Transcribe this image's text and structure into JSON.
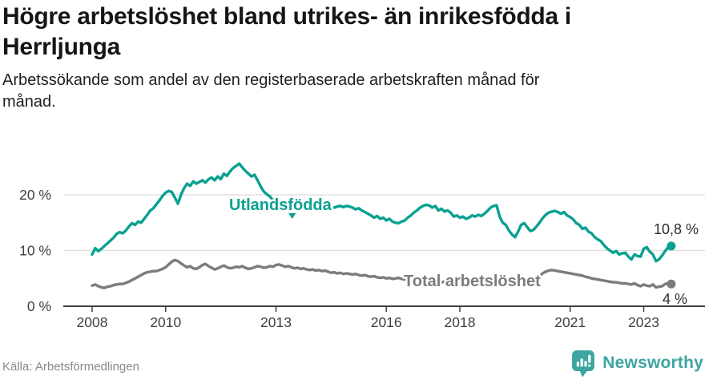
{
  "header": {
    "title_line1": "Högre arbetslöshet bland utrikes- än inrikesfödda i",
    "title_line2": "Herrljunga",
    "subtitle_line1": "Arbetssökande som andel av den registerbaserade arbetskraften månad för",
    "subtitle_line2": "månad."
  },
  "chart_data": {
    "type": "line",
    "title": "Högre arbetslöshet bland utrikes- än inrikesfödda i Herrljunga",
    "subtitle": "Arbetssökande som andel av den registerbaserade arbetskraften månad för månad.",
    "unit": "%",
    "frequency": "monthly",
    "x_start": "2008-01",
    "x_end": "2023-10",
    "x_ticks": [
      2008,
      2010,
      2013,
      2016,
      2018,
      2021,
      2023
    ],
    "y_ticks": [
      {
        "label": "0 %",
        "value": 0
      },
      {
        "label": "10 %",
        "value": 10
      },
      {
        "label": "20 %",
        "value": 20
      }
    ],
    "ylim": [
      0,
      27
    ],
    "grid": "horizontal",
    "legend_position": "inline-labels",
    "axis_color": "#404040",
    "grid_color": "#dcdcdc",
    "series": [
      {
        "name": "Utlandsfödda",
        "color": "#0aa191",
        "end_label": "10,8 %",
        "end_value": 10.8,
        "values": [
          9.3,
          10.4,
          9.9,
          10.3,
          10.8,
          11.3,
          11.8,
          12.3,
          13.0,
          13.3,
          13.1,
          13.6,
          14.3,
          14.9,
          14.6,
          15.2,
          15.0,
          15.7,
          16.4,
          17.2,
          17.6,
          18.3,
          19.0,
          19.8,
          20.4,
          20.7,
          20.5,
          19.5,
          18.4,
          20.0,
          21.2,
          22.0,
          21.6,
          22.4,
          22.0,
          22.3,
          22.6,
          22.2,
          22.8,
          23.1,
          22.6,
          23.3,
          22.8,
          23.8,
          23.4,
          24.2,
          24.8,
          25.2,
          25.6,
          24.9,
          24.3,
          23.8,
          23.3,
          23.6,
          22.6,
          21.5,
          20.6,
          20.1,
          19.7,
          19.0,
          18.3,
          18.0,
          17.8,
          18.0,
          17.7,
          17.9,
          17.6,
          17.8,
          17.5,
          17.7,
          17.9,
          17.6,
          17.8,
          17.5,
          17.7,
          17.4,
          17.6,
          17.8,
          17.5,
          17.7,
          17.9,
          18.0,
          17.8,
          18.0,
          17.9,
          17.7,
          17.4,
          17.6,
          17.2,
          16.9,
          16.6,
          16.3,
          15.9,
          16.2,
          15.7,
          15.9,
          15.4,
          15.7,
          15.2,
          15.0,
          14.9,
          15.2,
          15.4,
          15.9,
          16.3,
          16.8,
          17.2,
          17.7,
          18.0,
          18.2,
          18.1,
          17.7,
          18.0,
          17.2,
          17.5,
          17.0,
          17.2,
          16.8,
          16.1,
          16.3,
          15.9,
          16.1,
          15.7,
          15.9,
          16.3,
          16.1,
          16.4,
          16.2,
          16.6,
          17.1,
          17.7,
          18.0,
          18.1,
          16.1,
          15.0,
          14.6,
          13.6,
          12.9,
          12.4,
          13.4,
          14.6,
          14.9,
          14.2,
          13.5,
          13.7,
          14.3,
          15.0,
          15.8,
          16.4,
          16.8,
          17.0,
          17.1,
          16.9,
          16.6,
          16.9,
          16.3,
          16.0,
          15.6,
          14.9,
          14.6,
          13.9,
          14.1,
          13.4,
          13.1,
          12.4,
          12.0,
          11.7,
          11.0,
          10.4,
          10.0,
          9.6,
          9.9,
          9.3,
          9.5,
          9.6,
          8.9,
          8.4,
          9.3,
          9.0,
          8.9,
          10.3,
          10.6,
          9.8,
          9.3,
          8.1,
          8.4,
          9.1,
          9.9,
          10.6,
          10.8
        ]
      },
      {
        "name": "Total arbetslöshet",
        "color": "#7b7b80",
        "end_label": "4 %",
        "end_value": 4.0,
        "values": [
          3.7,
          3.9,
          3.6,
          3.4,
          3.3,
          3.5,
          3.6,
          3.8,
          3.9,
          4.0,
          4.0,
          4.2,
          4.4,
          4.7,
          5.0,
          5.3,
          5.6,
          5.9,
          6.1,
          6.2,
          6.3,
          6.3,
          6.5,
          6.7,
          7.0,
          7.5,
          8.0,
          8.3,
          8.1,
          7.7,
          7.3,
          7.0,
          7.2,
          6.8,
          6.7,
          7.0,
          7.4,
          7.6,
          7.2,
          6.9,
          6.6,
          6.8,
          7.1,
          7.3,
          7.0,
          6.8,
          6.9,
          7.1,
          7.0,
          7.2,
          6.9,
          6.7,
          6.8,
          7.0,
          7.2,
          7.1,
          6.9,
          7.0,
          7.2,
          7.1,
          7.4,
          7.5,
          7.3,
          7.1,
          7.2,
          7.0,
          6.8,
          6.9,
          6.7,
          6.8,
          6.6,
          6.5,
          6.6,
          6.4,
          6.5,
          6.3,
          6.4,
          6.2,
          6.0,
          6.1,
          5.9,
          6.0,
          5.8,
          5.9,
          5.8,
          5.7,
          5.8,
          5.6,
          5.5,
          5.6,
          5.4,
          5.3,
          5.4,
          5.2,
          5.1,
          5.2,
          5.0,
          5.1,
          4.9,
          5.0,
          5.1,
          4.9,
          4.8,
          4.9,
          4.7,
          4.8,
          4.6,
          4.7,
          4.6,
          4.7,
          4.5,
          4.6,
          4.4,
          4.5,
          4.3,
          4.4,
          4.3,
          4.4,
          4.2,
          4.3,
          4.2,
          4.3,
          4.1,
          4.2,
          4.0,
          4.1,
          4.2,
          4.0,
          4.1,
          4.2,
          4.1,
          4.2,
          4.2,
          4.3,
          4.2,
          4.1,
          4.2,
          4.3,
          4.2,
          4.3,
          4.4,
          4.5,
          4.4,
          4.5,
          4.7,
          5.0,
          5.4,
          5.9,
          6.2,
          6.4,
          6.5,
          6.4,
          6.3,
          6.2,
          6.1,
          6.0,
          5.9,
          5.8,
          5.7,
          5.6,
          5.5,
          5.3,
          5.2,
          5.0,
          4.9,
          4.8,
          4.7,
          4.6,
          4.5,
          4.4,
          4.3,
          4.3,
          4.2,
          4.1,
          4.1,
          4.0,
          3.9,
          4.1,
          3.8,
          3.6,
          3.9,
          3.7,
          3.6,
          3.9,
          3.4,
          3.5,
          3.6,
          4.0,
          4.1,
          4.0
        ]
      }
    ]
  },
  "footer": {
    "source": "Källa: Arbetsförmedlingen",
    "brand": "Newsworthy",
    "brand_color": "#3fa5a1"
  }
}
